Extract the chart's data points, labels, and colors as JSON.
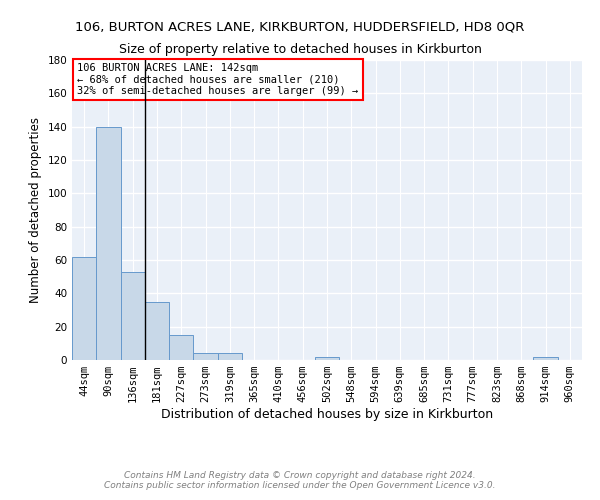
{
  "title": "106, BURTON ACRES LANE, KIRKBURTON, HUDDERSFIELD, HD8 0QR",
  "subtitle": "Size of property relative to detached houses in Kirkburton",
  "xlabel": "Distribution of detached houses by size in Kirkburton",
  "ylabel": "Number of detached properties",
  "categories": [
    "44sqm",
    "90sqm",
    "136sqm",
    "181sqm",
    "227sqm",
    "273sqm",
    "319sqm",
    "365sqm",
    "410sqm",
    "456sqm",
    "502sqm",
    "548sqm",
    "594sqm",
    "639sqm",
    "685sqm",
    "731sqm",
    "777sqm",
    "823sqm",
    "868sqm",
    "914sqm",
    "960sqm"
  ],
  "values": [
    62,
    140,
    53,
    35,
    15,
    4,
    4,
    0,
    0,
    0,
    2,
    0,
    0,
    0,
    0,
    0,
    0,
    0,
    0,
    2,
    0
  ],
  "bar_color": "#c8d8e8",
  "bar_edge_color": "#6699cc",
  "vline_x_index": 2,
  "vline_color": "black",
  "annotation_text": "106 BURTON ACRES LANE: 142sqm\n← 68% of detached houses are smaller (210)\n32% of semi-detached houses are larger (99) →",
  "annotation_box_color": "white",
  "annotation_box_edge": "red",
  "ylim": [
    0,
    180
  ],
  "yticks": [
    0,
    20,
    40,
    60,
    80,
    100,
    120,
    140,
    160,
    180
  ],
  "background_color": "#eaf0f8",
  "grid_color": "white",
  "footer": "Contains HM Land Registry data © Crown copyright and database right 2024.\nContains public sector information licensed under the Open Government Licence v3.0.",
  "title_fontsize": 9.5,
  "subtitle_fontsize": 9,
  "xlabel_fontsize": 9,
  "ylabel_fontsize": 8.5,
  "tick_fontsize": 7.5,
  "annotation_fontsize": 7.5,
  "footer_fontsize": 6.5
}
